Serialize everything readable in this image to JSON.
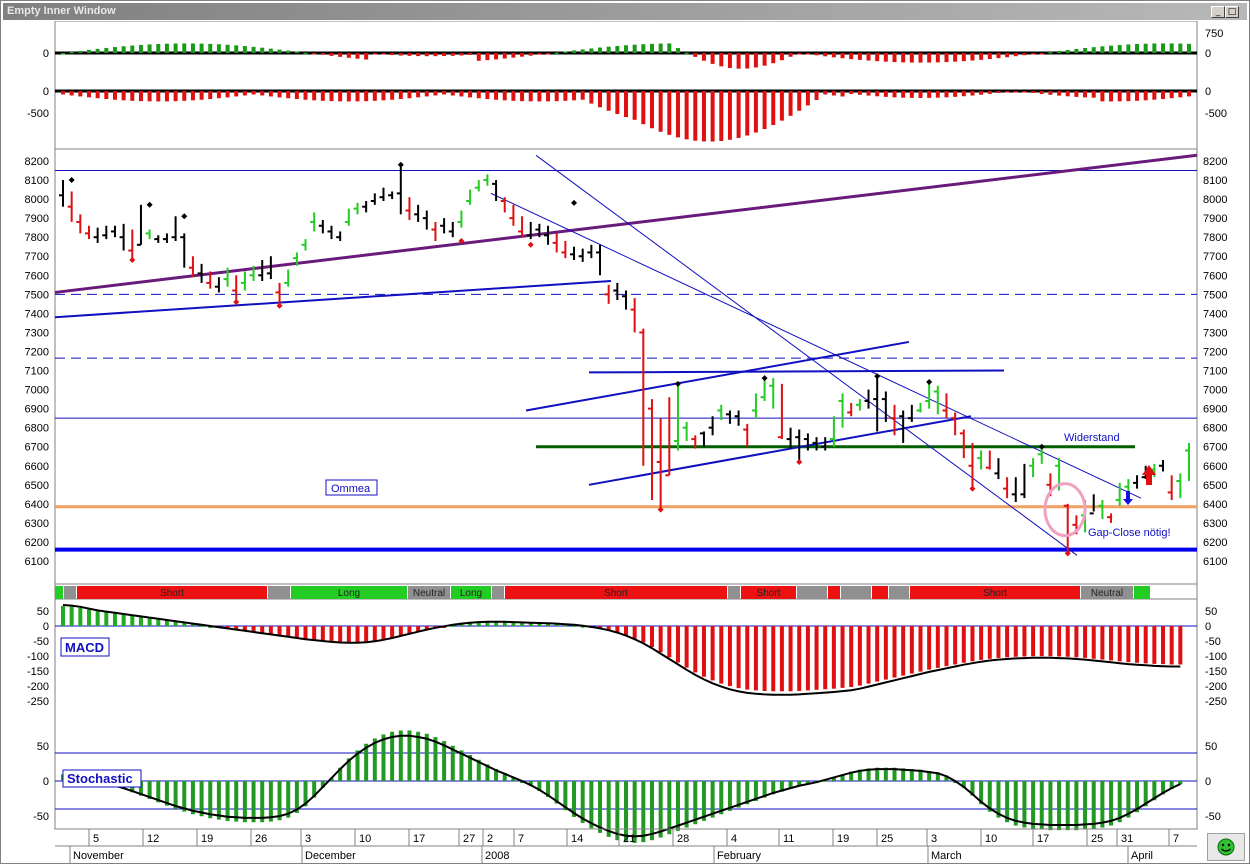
{
  "window": {
    "title": "Empty Inner Window",
    "buttons": [
      "minimize",
      "maximize",
      "close"
    ]
  },
  "chart_data": [
    {
      "type": "bar",
      "panel": "indicator-1",
      "y_tick_labels_left": [
        "0"
      ],
      "y_tick_labels_right": [
        "750",
        "0"
      ],
      "ylim": [
        -750,
        750
      ],
      "colors": {
        "positive": "#1a9a1a",
        "negative": "#e01010",
        "zero_line": "#000000"
      }
    },
    {
      "type": "bar",
      "panel": "indicator-2",
      "y_tick_labels_left": [
        "0",
        "-500"
      ],
      "y_tick_labels_right": [
        "0",
        "-500"
      ],
      "ylim": [
        -1000,
        200
      ],
      "colors": {
        "positive": "#1a9a1a",
        "negative": "#e01010",
        "zero_line": "#000000"
      }
    },
    {
      "type": "line",
      "panel": "price",
      "y_ticks": [
        8200,
        8100,
        8000,
        7900,
        7800,
        7700,
        7600,
        7500,
        7400,
        7300,
        7200,
        7100,
        7000,
        6900,
        6800,
        6700,
        6600,
        6500,
        6400,
        6300,
        6200,
        6100
      ],
      "ylim": [
        6000,
        8250
      ],
      "price_series": [
        [
          0,
          8020,
          8100,
          7960
        ],
        [
          1,
          7960,
          8040,
          7880
        ],
        [
          2,
          7880,
          7920,
          7820
        ],
        [
          3,
          7820,
          7860,
          7790
        ],
        [
          4,
          7800,
          7850,
          7770
        ],
        [
          5,
          7810,
          7860,
          7790
        ],
        [
          6,
          7830,
          7860,
          7800
        ],
        [
          7,
          7800,
          7870,
          7730
        ],
        [
          8,
          7730,
          7840,
          7680
        ],
        [
          9,
          7760,
          7970,
          7760
        ],
        [
          10,
          7820,
          7840,
          7790
        ],
        [
          11,
          7790,
          7810,
          7770
        ],
        [
          12,
          7790,
          7820,
          7770
        ],
        [
          13,
          7800,
          7910,
          7780
        ],
        [
          14,
          7800,
          7820,
          7640
        ],
        [
          15,
          7640,
          7700,
          7590
        ],
        [
          16,
          7610,
          7660,
          7560
        ],
        [
          17,
          7560,
          7620,
          7530
        ],
        [
          18,
          7540,
          7590,
          7510
        ],
        [
          19,
          7580,
          7640,
          7540
        ],
        [
          20,
          7520,
          7600,
          7460
        ],
        [
          21,
          7560,
          7620,
          7520
        ],
        [
          22,
          7600,
          7650,
          7570
        ],
        [
          23,
          7600,
          7680,
          7570
        ],
        [
          24,
          7610,
          7700,
          7580
        ],
        [
          25,
          7510,
          7560,
          7440
        ],
        [
          26,
          7560,
          7630,
          7540
        ],
        [
          27,
          7690,
          7720,
          7650
        ],
        [
          28,
          7760,
          7790,
          7730
        ],
        [
          29,
          7880,
          7930,
          7830
        ],
        [
          30,
          7860,
          7890,
          7820
        ],
        [
          31,
          7830,
          7860,
          7790
        ],
        [
          32,
          7800,
          7830,
          7780
        ],
        [
          33,
          7880,
          7950,
          7860
        ],
        [
          34,
          7950,
          7980,
          7920
        ],
        [
          35,
          7960,
          7990,
          7930
        ],
        [
          36,
          7990,
          8030,
          7970
        ],
        [
          37,
          8010,
          8060,
          7990
        ],
        [
          38,
          8020,
          8040,
          8000
        ],
        [
          39,
          8030,
          8180,
          7920
        ],
        [
          40,
          7940,
          8010,
          7890
        ],
        [
          41,
          7920,
          7970,
          7880
        ],
        [
          42,
          7900,
          7940,
          7840
        ],
        [
          43,
          7840,
          7880,
          7780
        ],
        [
          44,
          7860,
          7900,
          7820
        ],
        [
          45,
          7830,
          7880,
          7800
        ],
        [
          46,
          7880,
          7940,
          7850
        ],
        [
          47,
          7990,
          8050,
          7970
        ],
        [
          48,
          8060,
          8100,
          8040
        ],
        [
          49,
          8100,
          8130,
          8070
        ],
        [
          50,
          8080,
          8100,
          7990
        ],
        [
          51,
          7990,
          8010,
          7930
        ],
        [
          52,
          7900,
          7970,
          7860
        ],
        [
          53,
          7830,
          7910,
          7800
        ],
        [
          54,
          7810,
          7880,
          7790
        ],
        [
          55,
          7840,
          7870,
          7800
        ],
        [
          56,
          7810,
          7860,
          7760
        ],
        [
          57,
          7770,
          7820,
          7720
        ],
        [
          58,
          7720,
          7780,
          7690
        ],
        [
          59,
          7710,
          7750,
          7680
        ],
        [
          60,
          7700,
          7740,
          7670
        ],
        [
          61,
          7720,
          7760,
          7690
        ],
        [
          62,
          7720,
          7760,
          7600
        ],
        [
          63,
          7500,
          7550,
          7450
        ],
        [
          64,
          7520,
          7560,
          7470
        ],
        [
          65,
          7490,
          7520,
          7420
        ],
        [
          66,
          7420,
          7480,
          7300
        ],
        [
          67,
          7300,
          7320,
          6600
        ],
        [
          68,
          6900,
          6950,
          6420
        ],
        [
          69,
          6620,
          6850,
          6370
        ],
        [
          70,
          6550,
          6960,
          6550
        ],
        [
          71,
          6730,
          7030,
          6680
        ],
        [
          72,
          6800,
          6830,
          6730
        ],
        [
          73,
          6740,
          6760,
          6690
        ],
        [
          74,
          6770,
          6780,
          6700
        ],
        [
          75,
          6800,
          6860,
          6760
        ],
        [
          76,
          6890,
          6920,
          6840
        ],
        [
          77,
          6870,
          6890,
          6820
        ],
        [
          78,
          6860,
          6890,
          6810
        ],
        [
          79,
          6790,
          6820,
          6700
        ],
        [
          80,
          6890,
          6980,
          6850
        ],
        [
          81,
          6960,
          7060,
          6940
        ],
        [
          82,
          7020,
          7060,
          6900
        ],
        [
          83,
          6750,
          7030,
          6740
        ],
        [
          84,
          6740,
          6800,
          6690
        ],
        [
          85,
          6750,
          6790,
          6620
        ],
        [
          86,
          6740,
          6770,
          6680
        ],
        [
          87,
          6720,
          6750,
          6680
        ],
        [
          88,
          6700,
          6750,
          6680
        ],
        [
          89,
          6740,
          6860,
          6700
        ],
        [
          90,
          6940,
          6980,
          6800
        ],
        [
          91,
          6880,
          6930,
          6860
        ],
        [
          92,
          6920,
          6950,
          6890
        ],
        [
          93,
          6940,
          7000,
          6900
        ],
        [
          94,
          6950,
          7070,
          6780
        ],
        [
          95,
          6950,
          6990,
          6830
        ],
        [
          96,
          6850,
          6920,
          6760
        ],
        [
          97,
          6860,
          6890,
          6720
        ],
        [
          98,
          6850,
          6920,
          6830
        ],
        [
          99,
          6890,
          6930,
          6880
        ],
        [
          100,
          6940,
          7040,
          6900
        ],
        [
          101,
          6990,
          7020,
          6870
        ],
        [
          102,
          6890,
          6980,
          6850
        ],
        [
          103,
          6850,
          6880,
          6760
        ],
        [
          104,
          6770,
          6790,
          6640
        ],
        [
          105,
          6600,
          6720,
          6480
        ],
        [
          106,
          6640,
          6680,
          6580
        ],
        [
          107,
          6590,
          6680,
          6580
        ],
        [
          108,
          6560,
          6640,
          6530
        ],
        [
          109,
          6480,
          6540,
          6430
        ],
        [
          110,
          6450,
          6540,
          6410
        ],
        [
          111,
          6450,
          6610,
          6430
        ],
        [
          112,
          6600,
          6640,
          6540
        ],
        [
          113,
          6660,
          6700,
          6610
        ],
        [
          114,
          6500,
          6560,
          6440
        ],
        [
          115,
          6600,
          6640,
          6470
        ],
        [
          116,
          6390,
          6400,
          6140
        ],
        [
          117,
          6290,
          6340,
          6240
        ],
        [
          118,
          6340,
          6420,
          6250
        ],
        [
          119,
          6350,
          6450,
          6360
        ],
        [
          120,
          6390,
          6420,
          6320
        ],
        [
          121,
          6330,
          6350,
          6300
        ],
        [
          122,
          6420,
          6510,
          6390
        ],
        [
          123,
          6490,
          6530,
          6450
        ],
        [
          124,
          6510,
          6550,
          6480
        ],
        [
          125,
          6540,
          6600,
          6530
        ],
        [
          126,
          6580,
          6610,
          6540
        ],
        [
          127,
          6600,
          6630,
          6570
        ],
        [
          128,
          6460,
          6550,
          6420
        ],
        [
          129,
          6520,
          6560,
          6430
        ],
        [
          130,
          6680,
          6720,
          6520
        ]
      ],
      "horizontal_levels": [
        {
          "value": 8150,
          "style": "solid",
          "color": "#1010c0"
        },
        {
          "value": 7500,
          "style": "dashed",
          "color": "#1010c0"
        },
        {
          "value": 7165,
          "style": "dashed",
          "color": "#1010c0"
        },
        {
          "value": 6850,
          "style": "solid",
          "color": "#1010c0"
        },
        {
          "value": 6700,
          "style": "solid",
          "color": "#006000"
        },
        {
          "value": 6385,
          "style": "solid",
          "color": "#f0a060"
        },
        {
          "value": 6160,
          "style": "solid",
          "color": "#0000ee"
        }
      ],
      "annotations": [
        "Ommea",
        "Widerstand",
        "Gap-Close nötig!"
      ]
    },
    {
      "type": "bar",
      "panel": "regime-band",
      "segments": [
        {
          "label": "",
          "state": "long"
        },
        {
          "label": "",
          "state": "neutral"
        },
        {
          "label": "Short",
          "state": "short"
        },
        {
          "label": "",
          "state": "neutral"
        },
        {
          "label": "Long",
          "state": "long"
        },
        {
          "label": "Neutral",
          "state": "neutral"
        },
        {
          "label": "Long",
          "state": "long"
        },
        {
          "label": "",
          "state": "neutral"
        },
        {
          "label": "Short",
          "state": "short"
        },
        {
          "label": "",
          "state": "neutral"
        },
        {
          "label": "Short",
          "state": "short"
        },
        {
          "label": "",
          "state": "neutral"
        },
        {
          "label": "",
          "state": "short"
        },
        {
          "label": "",
          "state": "neutral"
        },
        {
          "label": "",
          "state": "short"
        },
        {
          "label": "",
          "state": "neutral"
        },
        {
          "label": "Short",
          "state": "short"
        },
        {
          "label": "Neutral",
          "state": "neutral"
        },
        {
          "label": "",
          "state": "long"
        }
      ]
    },
    {
      "type": "bar",
      "panel": "macd",
      "title": "MACD",
      "y_ticks": [
        50,
        0,
        -50,
        -100,
        -150,
        -200,
        -250
      ],
      "ylim": [
        -300,
        75
      ],
      "signal_line": [
        70,
        68,
        64,
        58,
        52,
        48,
        44,
        40,
        36,
        32,
        28,
        24,
        20,
        16,
        12,
        8,
        4,
        0,
        -4,
        -8,
        -12,
        -16,
        -20,
        -24,
        -28,
        -32,
        -36,
        -40,
        -44,
        -47,
        -50,
        -53,
        -55,
        -56,
        -56,
        -54,
        -51,
        -46,
        -40,
        -33,
        -26,
        -19,
        -12,
        -6,
        -1,
        4,
        8,
        11,
        13,
        14,
        14,
        14,
        13,
        12,
        11,
        10,
        9,
        8,
        6,
        4,
        1,
        -3,
        -8,
        -14,
        -22,
        -32,
        -44,
        -58,
        -74,
        -92,
        -110,
        -128,
        -146,
        -163,
        -178,
        -191,
        -202,
        -211,
        -218,
        -223,
        -226,
        -228,
        -229,
        -229,
        -229,
        -228,
        -226,
        -224,
        -222,
        -220,
        -217,
        -214,
        -209,
        -202,
        -195,
        -188,
        -181,
        -174,
        -167,
        -160,
        -153,
        -147,
        -141,
        -135,
        -129,
        -124,
        -119,
        -115,
        -112,
        -110,
        -108,
        -107,
        -106,
        -106,
        -106,
        -107,
        -108,
        -110,
        -112,
        -115,
        -118,
        -121,
        -124,
        -127,
        -129,
        -131,
        -133,
        -134,
        -135,
        -135
      ]
    },
    {
      "type": "bar",
      "panel": "stochastic",
      "title": "Stochastic",
      "y_ticks": [
        50,
        0,
        -50
      ],
      "ylim": [
        -100,
        100
      ],
      "k_line": [
        10,
        12,
        10,
        5,
        0,
        -4,
        -8,
        -12,
        -17,
        -22,
        -27,
        -32,
        -37,
        -42,
        -46,
        -50,
        -53,
        -56,
        -58,
        -60,
        -61,
        -62,
        -62,
        -62,
        -61,
        -59,
        -55,
        -48,
        -38,
        -25,
        -10,
        5,
        20,
        34,
        46,
        56,
        64,
        70,
        74,
        76,
        76,
        74,
        71,
        66,
        60,
        53,
        46,
        39,
        32,
        25,
        18,
        12,
        6,
        0,
        -7,
        -15,
        -24,
        -34,
        -44,
        -54,
        -63,
        -71,
        -78,
        -84,
        -89,
        -92,
        -93,
        -92,
        -89,
        -85,
        -80,
        -75,
        -70,
        -65,
        -60,
        -55,
        -50,
        -45,
        -40,
        -35,
        -30,
        -25,
        -20,
        -16,
        -12,
        -8,
        -5,
        -2,
        2,
        6,
        10,
        14,
        17,
        19,
        20,
        20,
        20,
        19,
        18,
        17,
        15,
        13,
        8,
        0,
        -10,
        -22,
        -35,
        -46,
        -55,
        -62,
        -67,
        -70,
        -72,
        -73,
        -74,
        -74,
        -74,
        -74,
        -73,
        -72,
        -70,
        -67,
        -62,
        -55,
        -47,
        -38,
        -29,
        -20,
        -12,
        -5
      ]
    },
    {
      "type": "table",
      "panel": "time-axis",
      "day_labels": [
        "5",
        "12",
        "19",
        "26",
        "3",
        "10",
        "17",
        "27",
        "2",
        "7",
        "14",
        "21",
        "28",
        "4",
        "11",
        "19",
        "25",
        "3",
        "10",
        "17",
        "25",
        "31",
        "7"
      ],
      "month_labels": [
        "November",
        "December",
        "2008",
        "February",
        "March",
        "April"
      ]
    }
  ]
}
